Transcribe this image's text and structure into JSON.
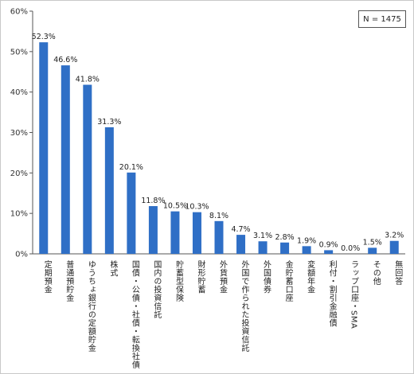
{
  "chart_data": {
    "type": "bar",
    "sample_size": "N = 1475",
    "y_axis": {
      "ticks": [
        "0%",
        "10%",
        "20%",
        "30%",
        "40%",
        "50%",
        "60%"
      ],
      "range": [
        0,
        60
      ],
      "unit": "%"
    },
    "grid": false,
    "bar_color": "#2f6fc6",
    "categories": [
      "定期預金",
      "普通預貯金",
      "ゆうちょ銀行の定額貯金",
      "株式",
      "国債・公債・社債・転換社債",
      "国内の投資信託",
      "貯蓄型保険",
      "財形貯蓄",
      "外貨預金",
      "外国で作られた投資信託",
      "外国債券",
      "金貯蓄口座",
      "変額年金",
      "利付・割引金融債",
      "ラップ口座・SMA",
      "その他",
      "無回答"
    ],
    "values": [
      52.3,
      46.6,
      41.8,
      31.3,
      20.1,
      11.8,
      10.5,
      10.3,
      8.1,
      4.7,
      3.1,
      2.8,
      1.9,
      0.9,
      0.0,
      1.5,
      3.2
    ],
    "value_labels": [
      "52.3%",
      "46.6%",
      "41.8%",
      "31.3%",
      "20.1%",
      "11.8%",
      "10.5%",
      "10.3%",
      "8.1%",
      "4.7%",
      "3.1%",
      "2.8%",
      "1.9%",
      "0.9%",
      "0.0%",
      "1.5%",
      "3.2%"
    ]
  }
}
